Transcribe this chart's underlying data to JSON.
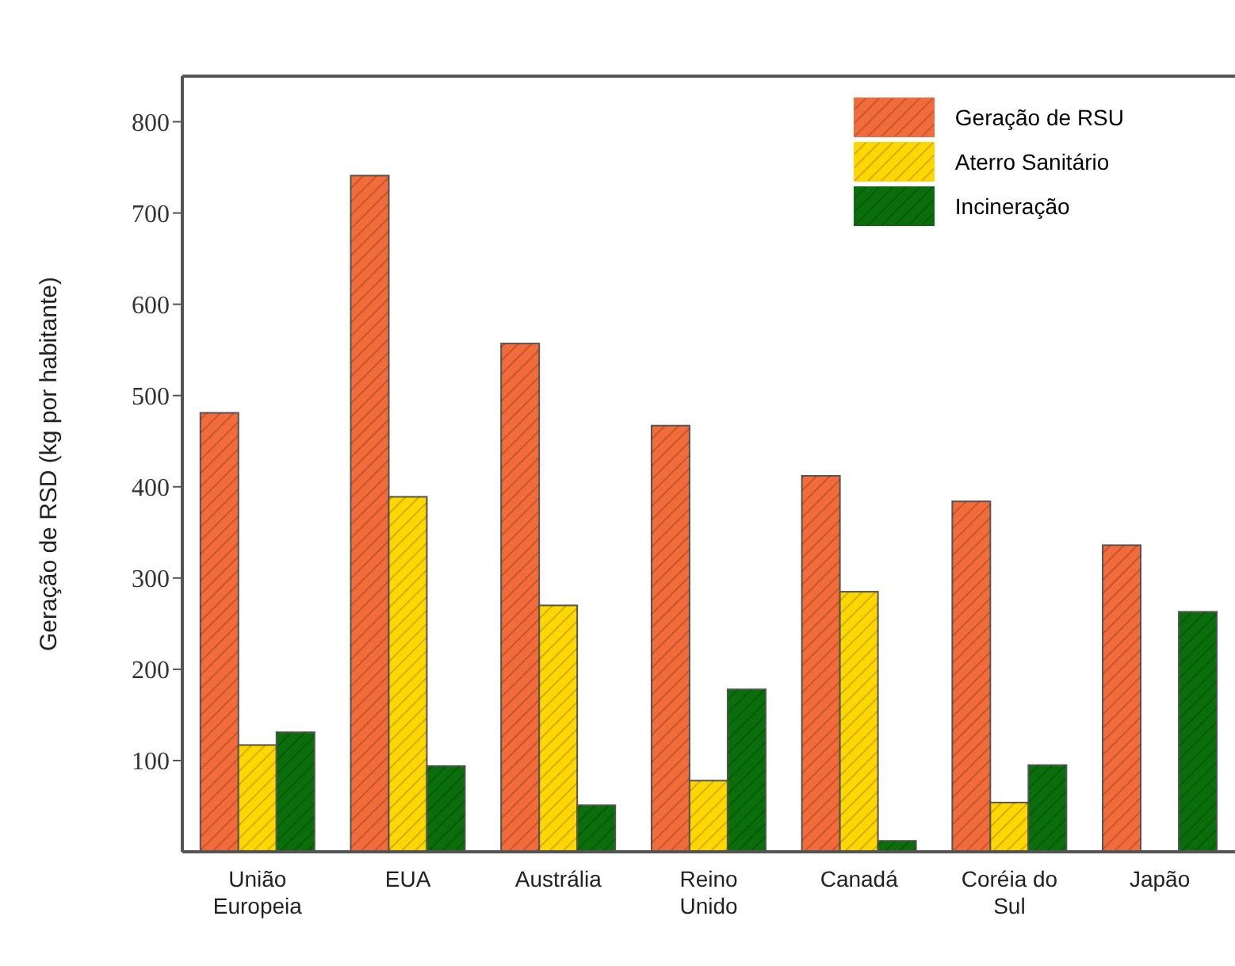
{
  "chart_data": {
    "type": "bar",
    "ylabel": "Geração de RSD (kg por habitante)",
    "categories": [
      "União Europeia",
      "EUA",
      "Austrália",
      "Reino Unido",
      "Canadá",
      "Coréia do Sul",
      "Japão"
    ],
    "series": [
      {
        "name": "Geração de RSU",
        "color": "#f26b3a",
        "values": [
          481,
          741,
          557,
          467,
          412,
          384,
          336
        ]
      },
      {
        "name": "Aterro Sanitário",
        "color": "#ffd700",
        "values": [
          117,
          389,
          270,
          78,
          285,
          54,
          null
        ]
      },
      {
        "name": "Incineração",
        "color": "#0a6e0a",
        "values": [
          131,
          94,
          51,
          178,
          12,
          95,
          263
        ]
      }
    ],
    "ylim": [
      0,
      850
    ],
    "yticks": [
      100,
      200,
      300,
      400,
      500,
      600,
      700,
      800
    ],
    "grid": false,
    "legend": "top right"
  }
}
